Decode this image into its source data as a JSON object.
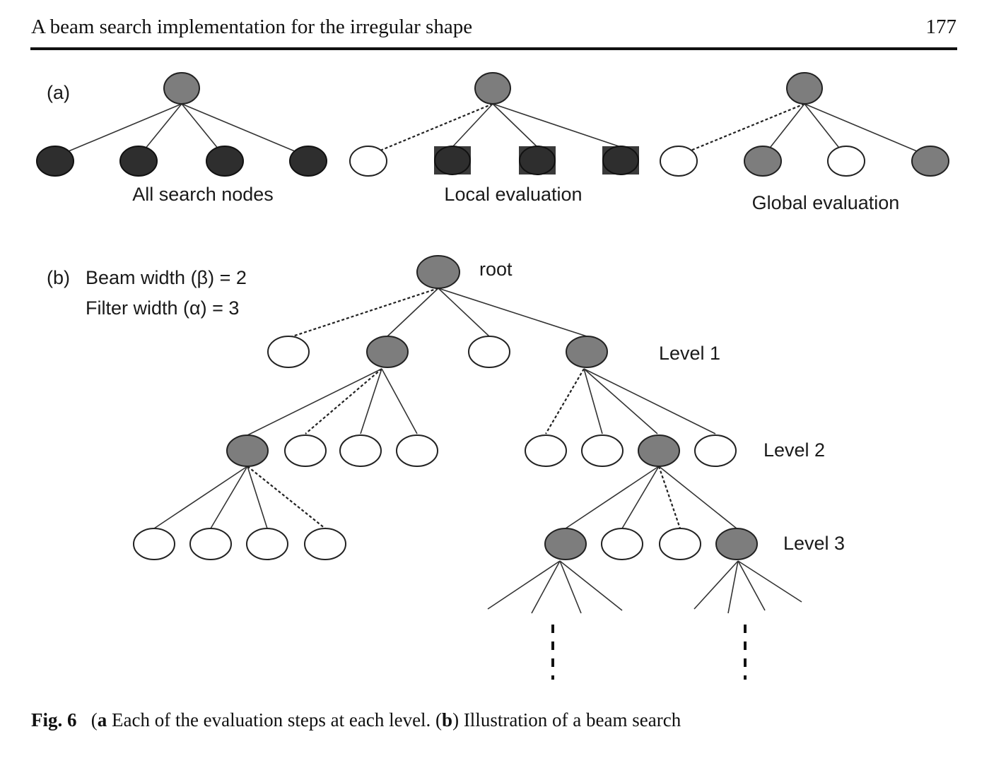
{
  "header": {
    "running_title": "A beam search implementation for the irregular shape",
    "page_number": "177"
  },
  "figure": {
    "panel_a": {
      "label": "(a)",
      "captions": [
        "All search nodes",
        "Local evaluation",
        "Global evaluation"
      ]
    },
    "panel_b": {
      "label": "(b)",
      "beam_width": "Beam width (β) = 2",
      "filter_width": "Filter width (α) = 3",
      "root_label": "root",
      "level_labels": [
        "Level 1",
        "Level 2",
        "Level 3"
      ]
    }
  },
  "caption": {
    "fig_label": "Fig. 6",
    "a_mark": "a",
    "a_text": " Each of the evaluation steps at each level. (",
    "b_mark": "b",
    "b_text": ") Illustration of a beam search"
  }
}
